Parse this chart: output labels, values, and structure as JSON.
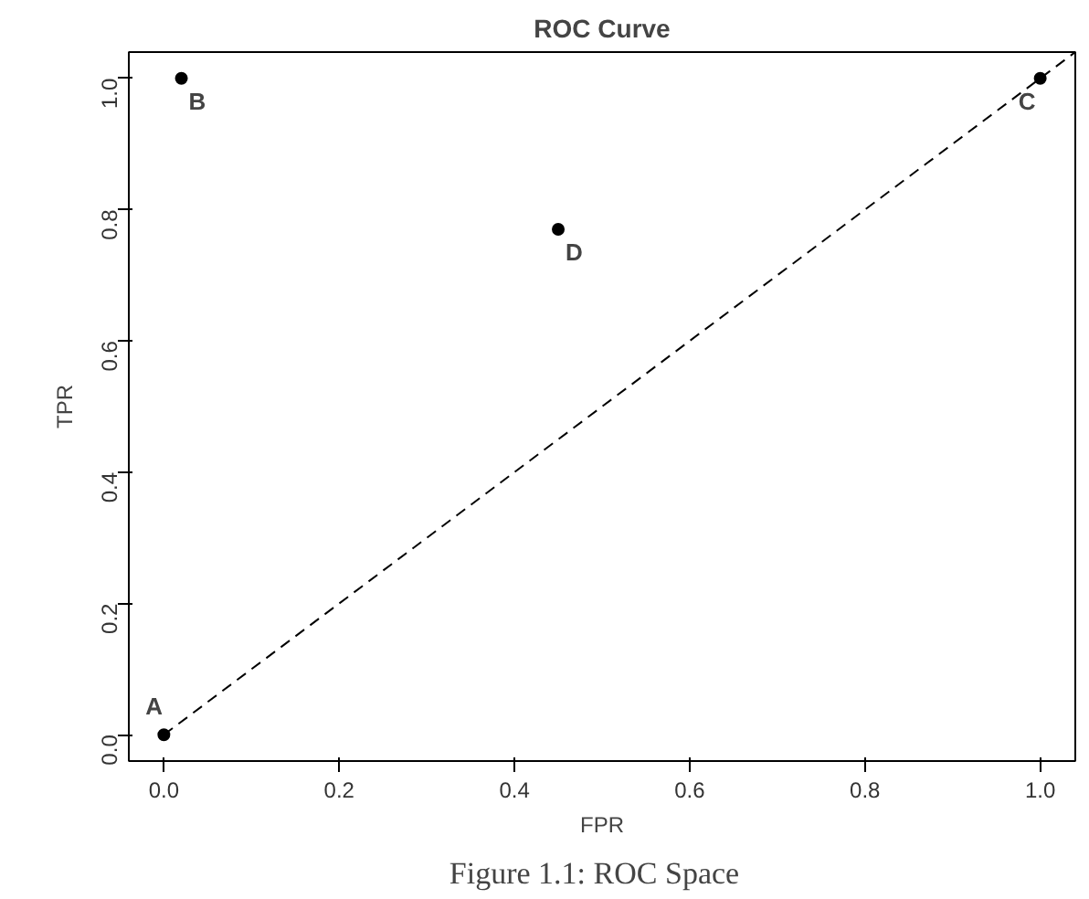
{
  "chart_data": {
    "type": "scatter",
    "title": "ROC Curve",
    "xlabel": "FPR",
    "ylabel": "TPR",
    "xlim": [
      -0.04,
      1.04
    ],
    "ylim": [
      -0.04,
      1.04
    ],
    "xticks": [
      {
        "value": 0,
        "label": "0.0"
      },
      0.2,
      0.4,
      0.6,
      0.8,
      {
        "value": 1,
        "label": "1.0"
      }
    ],
    "yticks": [
      {
        "value": 0,
        "label": "0.0"
      },
      0.2,
      0.4,
      0.6,
      0.8,
      {
        "value": 1,
        "label": "1.0"
      }
    ],
    "grid": false,
    "series": [
      {
        "color": "#000000",
        "marker": "circle",
        "x": [
          0.0,
          0.02,
          1.0,
          0.45
        ],
        "values": [
          0.0,
          1.0,
          1.0,
          0.77
        ]
      },
      {
        "type": "line",
        "color": "#000000",
        "line_style": "dashed",
        "x": [
          0.0,
          1.04
        ],
        "values": [
          0.0,
          1.04
        ]
      }
    ],
    "annotations": [
      {
        "text": "A",
        "x": 0.0,
        "y": 0.0
      },
      {
        "text": "B",
        "x": 0.02,
        "y": 1.0
      },
      {
        "text": "C",
        "x": 1.0,
        "y": 1.0
      },
      {
        "text": "D",
        "x": 0.45,
        "y": 0.77
      },
      "Figure 1.1:   ROC Space"
    ]
  }
}
